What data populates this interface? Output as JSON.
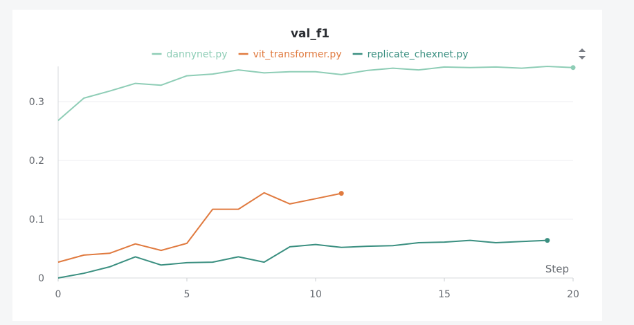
{
  "chart_data": {
    "type": "line",
    "title": "val_f1",
    "xlabel": "Step",
    "ylabel": "",
    "xlim": [
      0,
      20
    ],
    "ylim": [
      0,
      0.36
    ],
    "x_ticks": [
      0,
      5,
      10,
      15,
      20
    ],
    "y_ticks": [
      0,
      0.1,
      0.2,
      0.3
    ],
    "x_tick_labels": [
      "0",
      "5",
      "10",
      "15",
      "20"
    ],
    "y_tick_labels": [
      "0",
      "0.1",
      "0.2",
      "0.3"
    ],
    "grid": true,
    "legend_position": "top-center",
    "series": [
      {
        "name": "dannynet.py",
        "color": "#8ecdb6",
        "x": [
          0,
          1,
          2,
          3,
          4,
          5,
          6,
          7,
          8,
          9,
          10,
          11,
          12,
          13,
          14,
          15,
          16,
          17,
          18,
          19,
          20
        ],
        "y": [
          0.268,
          0.306,
          0.318,
          0.331,
          0.328,
          0.344,
          0.347,
          0.354,
          0.349,
          0.351,
          0.351,
          0.346,
          0.353,
          0.357,
          0.354,
          0.359,
          0.358,
          0.359,
          0.357,
          0.36,
          0.358
        ]
      },
      {
        "name": "vit_transformer.py",
        "color": "#e07a3f",
        "x": [
          0,
          1,
          2,
          3,
          4,
          5,
          6,
          7,
          8,
          9,
          10,
          11
        ],
        "y": [
          0.027,
          0.039,
          0.042,
          0.058,
          0.047,
          0.059,
          0.117,
          0.117,
          0.145,
          0.126,
          0.135,
          0.144
        ]
      },
      {
        "name": "replicate_chexnet.py",
        "color": "#3a8f80",
        "x": [
          0,
          1,
          2,
          3,
          4,
          5,
          6,
          7,
          8,
          9,
          10,
          11,
          12,
          13,
          14,
          15,
          16,
          17,
          18,
          19
        ],
        "y": [
          0.0,
          0.008,
          0.019,
          0.036,
          0.022,
          0.026,
          0.027,
          0.036,
          0.027,
          0.053,
          0.057,
          0.052,
          0.054,
          0.055,
          0.06,
          0.061,
          0.064,
          0.06,
          0.062,
          0.064
        ]
      }
    ]
  }
}
